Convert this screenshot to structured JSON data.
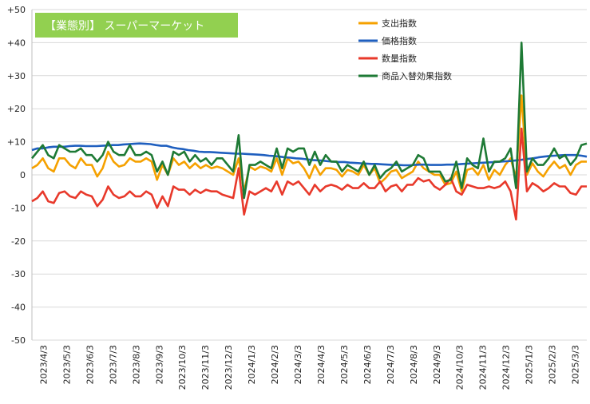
{
  "chart_data": {
    "type": "line",
    "title": "【業態別】 スーパーマーケット",
    "title_bg": "#92d050",
    "xlabel": "",
    "ylabel": "",
    "ylim": [
      -50,
      50
    ],
    "yticks": [
      "+50",
      "+40",
      "+30",
      "+20",
      "+10",
      "0",
      "-10",
      "-20",
      "-30",
      "-40",
      "-50"
    ],
    "grid": true,
    "legend_position": "top-right",
    "x_ticks": [
      "2023/4/3",
      "2023/5/3",
      "2023/6/3",
      "2023/7/3",
      "2023/8/3",
      "2023/9/3",
      "2023/10/3",
      "2023/11/3",
      "2023/12/3",
      "2024/1/3",
      "2024/2/3",
      "2024/3/3",
      "2024/4/3",
      "2024/5/3",
      "2024/6/3",
      "2024/7/3",
      "2024/8/3",
      "2024/9/3",
      "2024/10/3",
      "2024/11/3",
      "2024/12/3",
      "2025/1/3",
      "2025/2/3",
      "2025/3/3"
    ],
    "series": [
      {
        "name": "支出指数",
        "color": "#f5a100",
        "values": [
          2,
          3,
          5,
          2,
          1,
          5,
          5,
          3,
          2,
          5,
          3,
          3,
          -0.5,
          2,
          7,
          4,
          2.5,
          3,
          5,
          4,
          4,
          5,
          4,
          -1.5,
          3,
          0,
          5,
          3,
          4,
          2,
          3.5,
          2,
          3,
          2,
          2.5,
          2,
          1,
          0,
          5,
          -5,
          2.5,
          1.5,
          2.5,
          2,
          1,
          5,
          0,
          5,
          3.5,
          4,
          2,
          -1,
          3,
          0,
          2,
          2,
          1.5,
          -0.5,
          1.5,
          1,
          0,
          3,
          0,
          2,
          -2.5,
          -1,
          1,
          1.5,
          -1,
          0,
          1,
          4,
          2,
          1,
          0,
          0,
          -3,
          -2.5,
          1,
          -5,
          1.5,
          2,
          0,
          3,
          -1.5,
          1.5,
          0,
          3,
          5,
          -1,
          24,
          0,
          3.5,
          1,
          -0.5,
          2,
          4,
          2,
          3,
          0,
          3,
          4,
          4
        ]
      },
      {
        "name": "価格指数",
        "color": "#1f5fbf",
        "values": [
          7.5,
          8,
          8,
          8.3,
          8.5,
          8.5,
          8.5,
          8.7,
          8.8,
          8.8,
          8.7,
          8.7,
          8.7,
          8.8,
          8.9,
          9,
          9,
          9.2,
          9.3,
          9.4,
          9.5,
          9.4,
          9.3,
          9,
          8.8,
          8.8,
          8.3,
          8,
          7.8,
          7.5,
          7.3,
          7,
          6.9,
          6.9,
          6.8,
          6.7,
          6.6,
          6.5,
          6.4,
          6.4,
          6.3,
          6.2,
          6.1,
          6,
          5.8,
          5.7,
          5.5,
          5.3,
          5.2,
          5,
          4.9,
          4.7,
          4.5,
          4.4,
          4.3,
          4.1,
          4,
          3.9,
          3.9,
          3.7,
          3.6,
          3.5,
          3.4,
          3.3,
          3.3,
          3.2,
          3.1,
          3,
          3,
          2.9,
          2.9,
          3,
          3.1,
          3.1,
          3,
          3,
          3,
          3.1,
          3.1,
          3.2,
          3.3,
          3.4,
          3.5,
          3.6,
          3.7,
          3.8,
          3.9,
          4,
          4.1,
          4.2,
          4.4,
          4.6,
          4.8,
          5,
          5.3,
          5.5,
          5.7,
          5.8,
          5.9,
          6,
          6,
          6,
          5.8,
          5.5
        ]
      },
      {
        "name": "数量指数",
        "color": "#e8392b",
        "values": [
          -8,
          -7,
          -5,
          -8,
          -8.5,
          -5.5,
          -5,
          -6.5,
          -7,
          -5,
          -6,
          -6.5,
          -9.5,
          -7.5,
          -3.5,
          -6,
          -7,
          -6.5,
          -5,
          -6.5,
          -6.5,
          -5,
          -6,
          -10,
          -6.5,
          -9.5,
          -3.5,
          -4.5,
          -4.5,
          -6,
          -4.5,
          -5.5,
          -4.5,
          -5,
          -5,
          -6,
          -6.5,
          -7,
          2,
          -12,
          -5,
          -6,
          -5,
          -4,
          -5,
          -2,
          -6,
          -2,
          -3,
          -2,
          -4,
          -6,
          -3,
          -5,
          -3.5,
          -3,
          -3.5,
          -4.5,
          -3,
          -4,
          -4,
          -2.5,
          -4,
          -4,
          -2,
          -5,
          -3.5,
          -3,
          -5,
          -3,
          -3,
          -1,
          -2,
          -1.5,
          -3.5,
          -4.5,
          -3,
          -1,
          -5,
          -6,
          -3,
          -3.5,
          -4,
          -4,
          -3.5,
          -4,
          -3.5,
          -2,
          -5,
          -13.5,
          14,
          -5,
          -2.5,
          -3.5,
          -5,
          -4,
          -2.5,
          -3.5,
          -3.5,
          -5.5,
          -6,
          -3.5,
          -3.5
        ]
      },
      {
        "name": "商品入替効果指数",
        "color": "#1e7a35",
        "values": [
          5,
          7,
          9,
          6,
          5,
          9,
          8,
          7,
          7,
          8,
          6,
          6,
          4,
          6,
          10,
          7,
          6,
          6,
          9,
          6,
          6,
          7,
          6,
          1,
          4,
          0,
          7,
          6,
          7,
          4,
          6,
          4,
          5,
          3,
          5,
          5,
          3,
          1,
          12,
          -7,
          3,
          3,
          4,
          3,
          2,
          8,
          2,
          8,
          7,
          8,
          8,
          3,
          7,
          3,
          6,
          4,
          4,
          1,
          3,
          2,
          1,
          4,
          0,
          3,
          -1,
          1,
          2,
          4,
          1,
          2,
          3,
          6,
          5,
          1,
          1,
          1,
          -2,
          -1.5,
          4,
          -4,
          5,
          3,
          2,
          11,
          1,
          4,
          4,
          5,
          8,
          -4,
          40,
          1,
          5,
          3,
          3,
          5,
          8,
          5,
          6,
          3,
          5,
          9,
          9.5
        ]
      }
    ]
  }
}
